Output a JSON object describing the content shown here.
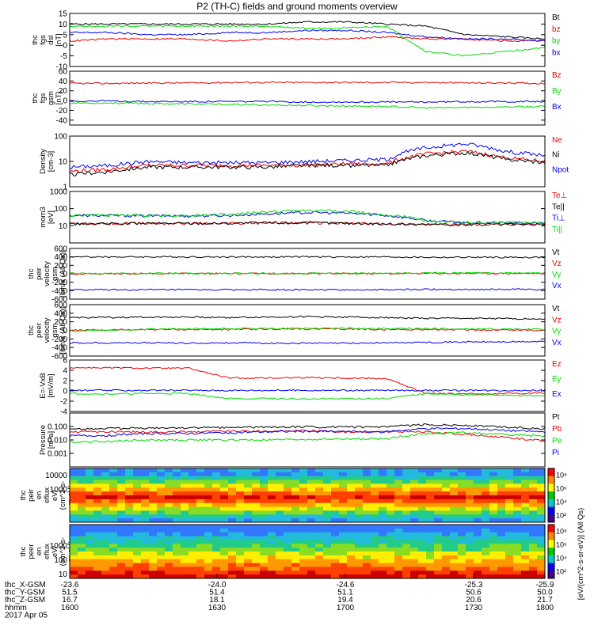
{
  "title": "P2 (TH-C) fields and ground moments overview",
  "colors": {
    "black": "#000000",
    "red": "#ee0000",
    "green": "#00dd00",
    "blue": "#0000ee"
  },
  "chart_data": [
    {
      "id": "fgs_dsl",
      "type": "line",
      "ylabel": [
        "thc",
        "fgs",
        "dsl",
        "[nT]"
      ],
      "ylim": [
        -10,
        15
      ],
      "yticks": [
        -10,
        -5,
        0,
        5,
        10,
        15
      ],
      "series": [
        {
          "name": "Bt",
          "color": "black",
          "values": [
            10,
            10,
            10,
            10,
            10,
            10,
            11,
            11,
            10,
            9,
            5,
            4,
            3
          ]
        },
        {
          "name": "bz",
          "color": "red",
          "values": [
            2,
            3,
            3,
            3,
            2,
            3,
            3,
            3,
            4,
            3,
            3,
            2,
            2
          ]
        },
        {
          "name": "by",
          "color": "green",
          "values": [
            9,
            9,
            9,
            9,
            9,
            9,
            8,
            8,
            9,
            -3,
            -5,
            -3,
            -1
          ]
        },
        {
          "name": "bx",
          "color": "blue",
          "values": [
            6,
            6,
            5,
            5,
            6,
            6,
            7,
            7,
            6,
            4,
            3,
            3,
            2
          ]
        }
      ]
    },
    {
      "id": "fgs_gsm",
      "type": "line",
      "ylabel": [
        "thc",
        "fgs",
        "gsm",
        "[nT]"
      ],
      "ylim": [
        -50,
        60
      ],
      "yticks": [
        -40,
        -20,
        0,
        20,
        40,
        60
      ],
      "series": [
        {
          "name": "Bz",
          "color": "red",
          "values": [
            35,
            35,
            36,
            36,
            37,
            37,
            37,
            37,
            37,
            37,
            36,
            36,
            35
          ]
        },
        {
          "name": "By",
          "color": "green",
          "values": [
            -5,
            -5,
            -6,
            -7,
            -8,
            -9,
            -10,
            -11,
            -12,
            -15,
            -14,
            -13,
            -12
          ]
        },
        {
          "name": "Bx",
          "color": "blue",
          "values": [
            -1,
            -1,
            -2,
            -2,
            -2,
            -2,
            -3,
            -3,
            -3,
            -3,
            -2,
            -2,
            -2
          ]
        }
      ]
    },
    {
      "id": "density",
      "type": "line",
      "yscale": "log",
      "ylabel": [
        "Density",
        "[cm-3]"
      ],
      "ylim": [
        1,
        100
      ],
      "yticks": [
        1,
        10,
        100
      ],
      "series": [
        {
          "name": "Ne",
          "color": "red",
          "values": [
            4,
            5,
            7,
            7,
            7,
            7,
            7,
            8,
            8,
            20,
            25,
            14,
            10
          ]
        },
        {
          "name": "Ni",
          "color": "black",
          "values": [
            3,
            4,
            6,
            6,
            6,
            6,
            7,
            7,
            7,
            17,
            22,
            12,
            9
          ]
        },
        {
          "name": "Npot",
          "color": "blue",
          "values": [
            6,
            7,
            10,
            9,
            9,
            9,
            10,
            11,
            12,
            35,
            50,
            25,
            17
          ]
        }
      ]
    },
    {
      "id": "temperature",
      "type": "line",
      "yscale": "log",
      "ylabel": [
        "mom3",
        "[eV]"
      ],
      "ylim": [
        1,
        1000
      ],
      "yticks": [
        10,
        100,
        1000
      ],
      "series": [
        {
          "name": "Te⊥",
          "color": "red",
          "values": [
            13,
            13,
            14,
            14,
            14,
            15,
            15,
            14,
            13,
            12,
            12,
            12,
            12
          ]
        },
        {
          "name": "Te||",
          "color": "black",
          "values": [
            13,
            13,
            14,
            14,
            14,
            15,
            15,
            14,
            13,
            12,
            12,
            12,
            12
          ]
        },
        {
          "name": "Ti⊥",
          "color": "blue",
          "values": [
            40,
            40,
            38,
            38,
            40,
            50,
            60,
            55,
            40,
            20,
            15,
            15,
            14
          ]
        },
        {
          "name": "Ti||",
          "color": "green",
          "values": [
            40,
            42,
            40,
            40,
            45,
            65,
            80,
            70,
            45,
            20,
            15,
            15,
            14
          ]
        }
      ]
    },
    {
      "id": "peir_velocity",
      "type": "line",
      "ylabel": [
        "thc",
        "peir",
        "velocity",
        "gsm",
        "[km/s (All Qs)]"
      ],
      "ylim": [
        -600,
        600
      ],
      "yticks": [
        -600,
        -400,
        -200,
        0,
        200,
        400,
        600
      ],
      "series": [
        {
          "name": "Vt",
          "color": "black",
          "values": [
            400,
            400,
            400,
            400,
            400,
            400,
            400,
            400,
            400,
            390,
            390,
            390,
            390
          ]
        },
        {
          "name": "Vz",
          "color": "red",
          "values": [
            0,
            0,
            5,
            5,
            5,
            5,
            5,
            5,
            5,
            10,
            10,
            10,
            10
          ]
        },
        {
          "name": "Vy",
          "color": "green",
          "values": [
            10,
            10,
            10,
            10,
            10,
            10,
            10,
            10,
            10,
            20,
            20,
            20,
            20
          ]
        },
        {
          "name": "Vx",
          "color": "blue",
          "values": [
            -380,
            -380,
            -380,
            -380,
            -380,
            -380,
            -380,
            -380,
            -380,
            -370,
            -370,
            -370,
            -370
          ]
        }
      ]
    },
    {
      "id": "peer_velocity",
      "type": "line",
      "ylabel": [
        "thc",
        "peer",
        "velocity",
        "gsm",
        "[km/s (All Qs)]"
      ],
      "ylim": [
        -600,
        600
      ],
      "yticks": [
        -600,
        -400,
        -200,
        0,
        200,
        400,
        600
      ],
      "series": [
        {
          "name": "Vt",
          "color": "black",
          "values": [
            300,
            300,
            310,
            310,
            300,
            310,
            320,
            310,
            300,
            280,
            280,
            270,
            270
          ]
        },
        {
          "name": "Vz",
          "color": "red",
          "values": [
            0,
            10,
            20,
            20,
            20,
            30,
            30,
            30,
            20,
            20,
            10,
            10,
            0
          ]
        },
        {
          "name": "Vy",
          "color": "green",
          "values": [
            -20,
            0,
            30,
            30,
            40,
            40,
            50,
            50,
            40,
            40,
            30,
            30,
            20
          ]
        },
        {
          "name": "Vx",
          "color": "blue",
          "values": [
            -290,
            -290,
            -290,
            -300,
            -290,
            -300,
            -300,
            -300,
            -290,
            -280,
            -270,
            -270,
            -260
          ]
        }
      ]
    },
    {
      "id": "efield",
      "type": "line",
      "ylabel": [
        "E=-VxB",
        "[mV/m]"
      ],
      "ylim": [
        -4,
        6
      ],
      "yticks": [
        -4,
        -2,
        0,
        2,
        4,
        6
      ],
      "series": [
        {
          "name": "Ez",
          "color": "red",
          "values": [
            4.5,
            4.5,
            4.4,
            4.4,
            2.5,
            2.5,
            2.6,
            2.5,
            2.4,
            -0.5,
            -0.6,
            -0.5,
            -0.4
          ]
        },
        {
          "name": "Ey",
          "color": "green",
          "values": [
            -0.5,
            -0.6,
            -0.5,
            -0.5,
            -1.5,
            -1.5,
            -1.6,
            -1.5,
            -1.5,
            -0.5,
            -0.8,
            -0.8,
            -1.0
          ]
        },
        {
          "name": "Ex",
          "color": "blue",
          "values": [
            0.1,
            0.1,
            0.1,
            0.1,
            0.1,
            0.1,
            0.1,
            0.1,
            0.1,
            0.1,
            0.1,
            0.1,
            0.1
          ]
        }
      ]
    },
    {
      "id": "pressure",
      "type": "line",
      "yscale": "log",
      "ylabel": [
        "Pressure",
        "[nPa]"
      ],
      "ylim": [
        0.0001,
        1
      ],
      "yticks": [
        0.001,
        0.01,
        0.1
      ],
      "yticklabels": [
        "0.001",
        "0.010",
        "0.100"
      ],
      "series": [
        {
          "name": "Pt",
          "color": "black",
          "values": [
            0.065,
            0.07,
            0.075,
            0.08,
            0.085,
            0.09,
            0.095,
            0.09,
            0.09,
            0.14,
            0.12,
            0.09,
            0.07
          ]
        },
        {
          "name": "Pb",
          "color": "red",
          "values": [
            0.04,
            0.04,
            0.04,
            0.04,
            0.045,
            0.045,
            0.05,
            0.04,
            0.04,
            0.04,
            0.025,
            0.015,
            0.008
          ]
        },
        {
          "name": "Pe",
          "color": "green",
          "values": [
            0.007,
            0.008,
            0.01,
            0.01,
            0.01,
            0.01,
            0.011,
            0.012,
            0.012,
            0.03,
            0.035,
            0.025,
            0.02
          ]
        },
        {
          "name": "Pi",
          "color": "blue",
          "values": [
            0.02,
            0.022,
            0.03,
            0.03,
            0.035,
            0.04,
            0.045,
            0.042,
            0.04,
            0.07,
            0.07,
            0.05,
            0.04
          ]
        }
      ]
    },
    {
      "id": "peir_spec",
      "type": "heatmap",
      "yscale": "log",
      "ylabel": [
        "thc",
        "peir",
        "en",
        "eflux",
        "eV/",
        "(cm^2-s-",
        "sr-eV)"
      ],
      "ylim": [
        5,
        30000
      ],
      "yticks": [
        1000,
        10000
      ],
      "colorbar_label": "[eV/(cm^2-s-sr-eV)] (All Qs)",
      "colorbar_ticks": [
        "10²",
        "10⁴",
        "10⁶",
        "10⁸"
      ]
    },
    {
      "id": "peer_spec",
      "type": "heatmap",
      "yscale": "log",
      "ylabel": [
        "thc",
        "peer",
        "en",
        "eflux",
        "eV/",
        "(cm^2-s-",
        "sr-eV)"
      ],
      "ylim": [
        5,
        30000
      ],
      "yticks": [
        10,
        100,
        1000
      ],
      "colorbar_label": "[eV/(cm^2-s-sr-eV)]",
      "colorbar_ticks": [
        "10²",
        "10⁴",
        "10⁶",
        "10⁸"
      ]
    }
  ],
  "xaxis": {
    "tick_rows": [
      {
        "label": "thc_X-GSM",
        "values": [
          "-23.6",
          "-24.0",
          "-24.6",
          "-25.3",
          "-25.9"
        ]
      },
      {
        "label": "thc_Y-GSM",
        "values": [
          "51.5",
          "51.4",
          "51.1",
          "50.6",
          "50.0"
        ]
      },
      {
        "label": "thc_Z-GSM",
        "values": [
          "16.7",
          "18.1",
          "19.4",
          "20.6",
          "21.7"
        ]
      },
      {
        "label": "hhmm",
        "values": [
          "1600",
          "1630",
          "1700",
          "1730",
          "1800"
        ]
      }
    ],
    "date": "2017 Apr 05"
  }
}
